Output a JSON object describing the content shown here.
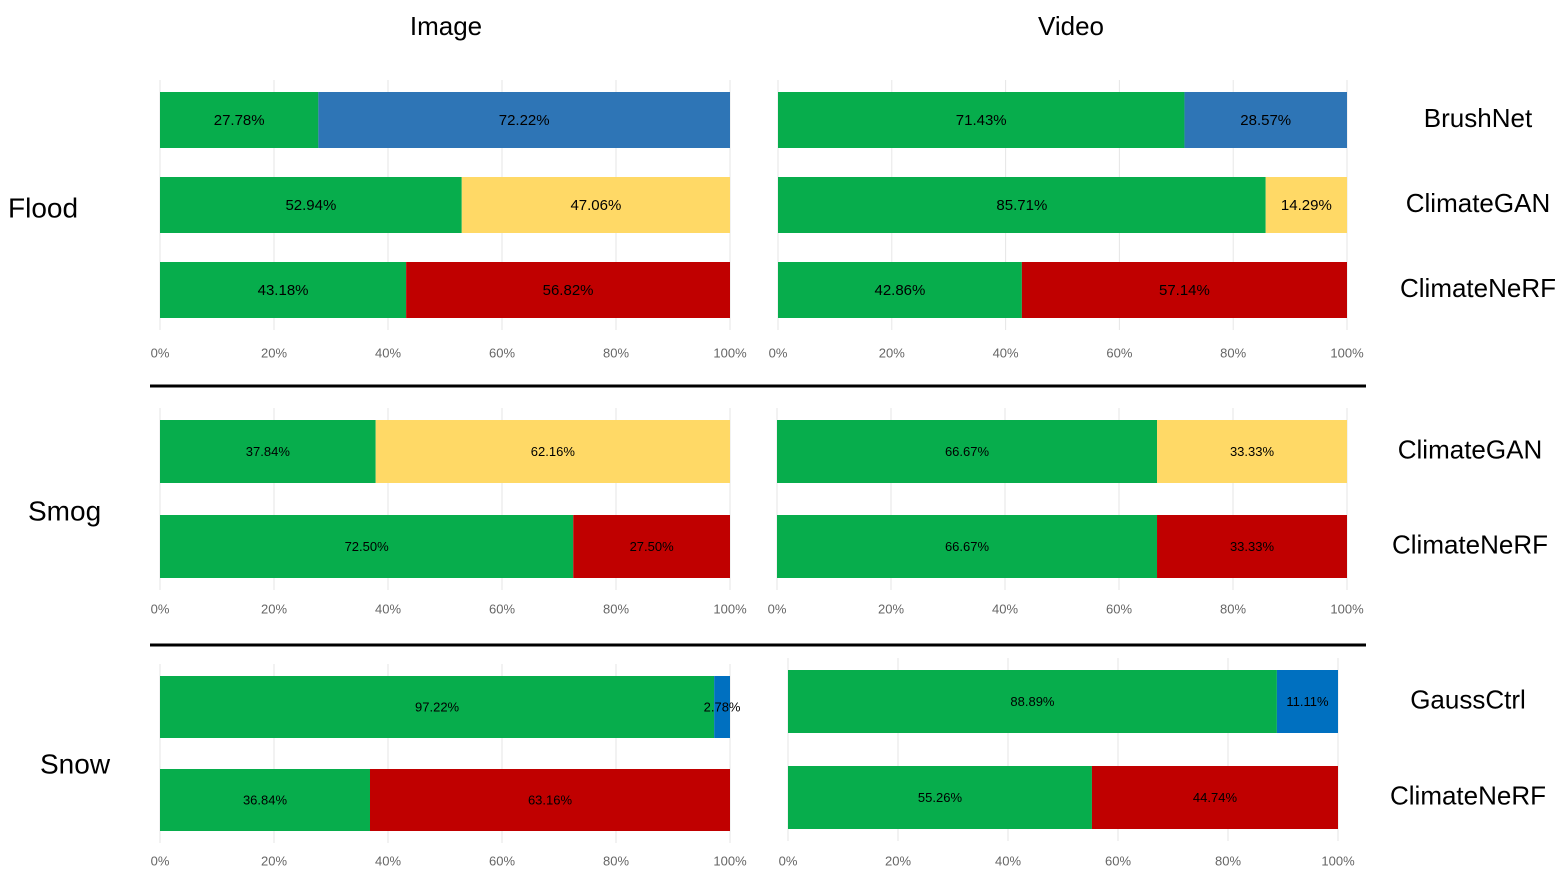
{
  "columns": [
    "Image",
    "Video"
  ],
  "rows": [
    "Flood",
    "Smog",
    "Snow"
  ],
  "chart_data": [
    {
      "type": "bar",
      "orientation": "horizontal",
      "stacked": true,
      "grid": true,
      "xlim": [
        0,
        100
      ],
      "xticks": [
        {
          "value": 0,
          "label": "0%"
        },
        {
          "value": 20,
          "label": "20%"
        },
        {
          "value": 40,
          "label": "40%"
        },
        {
          "value": 60,
          "label": "60%"
        },
        {
          "value": 80,
          "label": "80%"
        },
        {
          "value": 100,
          "label": "100%"
        }
      ],
      "series": [
        {
          "color": "#07ad4c",
          "values": [
            27.78,
            52.94,
            43.18
          ],
          "value_labels": [
            "27.78%",
            "52.94%",
            "43.18%"
          ]
        },
        {
          "colors": [
            "#2e75b6",
            "#ffd966",
            "#c00000"
          ],
          "values": [
            72.22,
            47.06,
            56.82
          ],
          "value_labels": [
            "72.22%",
            "47.06%",
            "56.82%"
          ]
        }
      ]
    },
    {
      "type": "bar",
      "orientation": "horizontal",
      "stacked": true,
      "grid": true,
      "categories": [
        "BrushNet",
        "ClimateGAN",
        "ClimateNeRF"
      ],
      "xlim": [
        0,
        100
      ],
      "xticks": [
        {
          "value": 0,
          "label": "0%"
        },
        {
          "value": 20,
          "label": "20%"
        },
        {
          "value": 40,
          "label": "40%"
        },
        {
          "value": 60,
          "label": "60%"
        },
        {
          "value": 80,
          "label": "80%"
        },
        {
          "value": 100,
          "label": "100%"
        }
      ],
      "series": [
        {
          "color": "#07ad4c",
          "values": [
            71.43,
            85.71,
            42.86
          ],
          "value_labels": [
            "71.43%",
            "85.71%",
            "42.86%"
          ]
        },
        {
          "colors": [
            "#2e75b6",
            "#ffd966",
            "#c00000"
          ],
          "values": [
            28.57,
            14.29,
            57.14
          ],
          "value_labels": [
            "28.57%",
            "14.29%",
            "57.14%"
          ]
        }
      ]
    },
    {
      "type": "bar",
      "orientation": "horizontal",
      "stacked": true,
      "grid": true,
      "xlim": [
        0,
        100
      ],
      "xticks": [
        {
          "value": 0,
          "label": "0%"
        },
        {
          "value": 20,
          "label": "20%"
        },
        {
          "value": 40,
          "label": "40%"
        },
        {
          "value": 60,
          "label": "60%"
        },
        {
          "value": 80,
          "label": "80%"
        },
        {
          "value": 100,
          "label": "100%"
        }
      ],
      "series": [
        {
          "color": "#07ad4c",
          "values": [
            37.84,
            72.5
          ],
          "value_labels": [
            "37.84%",
            "72.50%"
          ]
        },
        {
          "colors": [
            "#ffd966",
            "#c00000"
          ],
          "values": [
            62.16,
            27.5
          ],
          "value_labels": [
            "62.16%",
            "27.50%"
          ]
        }
      ]
    },
    {
      "type": "bar",
      "orientation": "horizontal",
      "stacked": true,
      "grid": true,
      "categories": [
        "ClimateGAN",
        "ClimateNeRF"
      ],
      "xlim": [
        0,
        100
      ],
      "xticks": [
        {
          "value": 0,
          "label": "0%"
        },
        {
          "value": 20,
          "label": "20%"
        },
        {
          "value": 40,
          "label": "40%"
        },
        {
          "value": 60,
          "label": "60%"
        },
        {
          "value": 80,
          "label": "80%"
        },
        {
          "value": 100,
          "label": "100%"
        }
      ],
      "series": [
        {
          "color": "#07ad4c",
          "values": [
            66.67,
            66.67
          ],
          "value_labels": [
            "66.67%",
            "66.67%"
          ]
        },
        {
          "colors": [
            "#ffd966",
            "#c00000"
          ],
          "values": [
            33.33,
            33.33
          ],
          "value_labels": [
            "33.33%",
            "33.33%"
          ]
        }
      ]
    },
    {
      "type": "bar",
      "orientation": "horizontal",
      "stacked": true,
      "grid": true,
      "xlim": [
        0,
        100
      ],
      "xticks": [
        {
          "value": 0,
          "label": "0%"
        },
        {
          "value": 20,
          "label": "20%"
        },
        {
          "value": 40,
          "label": "40%"
        },
        {
          "value": 60,
          "label": "60%"
        },
        {
          "value": 80,
          "label": "80%"
        },
        {
          "value": 100,
          "label": "100%"
        }
      ],
      "series": [
        {
          "color": "#07ad4c",
          "values": [
            97.22,
            36.84
          ],
          "value_labels": [
            "97.22%",
            "36.84%"
          ]
        },
        {
          "colors": [
            "#0070c0",
            "#c00000"
          ],
          "values": [
            2.78,
            63.16
          ],
          "value_labels": [
            "2.78%",
            "63.16%"
          ]
        }
      ]
    },
    {
      "type": "bar",
      "orientation": "horizontal",
      "stacked": true,
      "grid": true,
      "categories": [
        "GaussCtrl",
        "ClimateNeRF"
      ],
      "xlim": [
        0,
        100
      ],
      "xticks": [
        {
          "value": 0,
          "label": "0%"
        },
        {
          "value": 20,
          "label": "20%"
        },
        {
          "value": 40,
          "label": "40%"
        },
        {
          "value": 60,
          "label": "60%"
        },
        {
          "value": 80,
          "label": "80%"
        },
        {
          "value": 100,
          "label": "100%"
        }
      ],
      "series": [
        {
          "color": "#07ad4c",
          "values": [
            88.89,
            55.26
          ],
          "value_labels": [
            "88.89%",
            "55.26%"
          ]
        },
        {
          "colors": [
            "#0070c0",
            "#c00000"
          ],
          "values": [
            11.11,
            44.74
          ],
          "value_labels": [
            "11.11%",
            "44.74%"
          ]
        }
      ]
    }
  ]
}
